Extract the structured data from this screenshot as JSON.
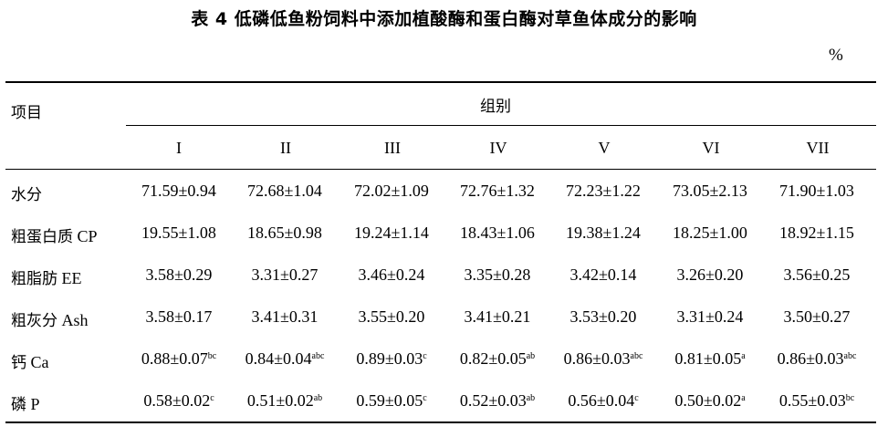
{
  "title": "表 4  低磷低鱼粉饲料中添加植酸酶和蛋白酶对草鱼体成分的影响",
  "unit": "%",
  "header": {
    "item": "项目",
    "group": "组别",
    "columns": [
      "I",
      "II",
      "III",
      "IV",
      "V",
      "VI",
      "VII"
    ]
  },
  "rows": [
    {
      "label_zh": "水分",
      "label_en": "",
      "cells": [
        {
          "v": "71.59±0.94",
          "sup": ""
        },
        {
          "v": "72.68±1.04",
          "sup": ""
        },
        {
          "v": "72.02±1.09",
          "sup": ""
        },
        {
          "v": "72.76±1.32",
          "sup": ""
        },
        {
          "v": "72.23±1.22",
          "sup": ""
        },
        {
          "v": "73.05±2.13",
          "sup": ""
        },
        {
          "v": "71.90±1.03",
          "sup": ""
        }
      ]
    },
    {
      "label_zh": "粗蛋白质",
      "label_en": "CP",
      "cells": [
        {
          "v": "19.55±1.08",
          "sup": ""
        },
        {
          "v": "18.65±0.98",
          "sup": ""
        },
        {
          "v": "19.24±1.14",
          "sup": ""
        },
        {
          "v": "18.43±1.06",
          "sup": ""
        },
        {
          "v": "19.38±1.24",
          "sup": ""
        },
        {
          "v": "18.25±1.00",
          "sup": ""
        },
        {
          "v": "18.92±1.15",
          "sup": ""
        }
      ]
    },
    {
      "label_zh": "粗脂肪",
      "label_en": "EE",
      "cells": [
        {
          "v": "3.58±0.29",
          "sup": ""
        },
        {
          "v": "3.31±0.27",
          "sup": ""
        },
        {
          "v": "3.46±0.24",
          "sup": ""
        },
        {
          "v": "3.35±0.28",
          "sup": ""
        },
        {
          "v": "3.42±0.14",
          "sup": ""
        },
        {
          "v": "3.26±0.20",
          "sup": ""
        },
        {
          "v": "3.56±0.25",
          "sup": ""
        }
      ]
    },
    {
      "label_zh": "粗灰分",
      "label_en": "Ash",
      "cells": [
        {
          "v": "3.58±0.17",
          "sup": ""
        },
        {
          "v": "3.41±0.31",
          "sup": ""
        },
        {
          "v": "3.55±0.20",
          "sup": ""
        },
        {
          "v": "3.41±0.21",
          "sup": ""
        },
        {
          "v": "3.53±0.20",
          "sup": ""
        },
        {
          "v": "3.31±0.24",
          "sup": ""
        },
        {
          "v": "3.50±0.27",
          "sup": ""
        }
      ]
    },
    {
      "label_zh": "钙",
      "label_en": "Ca",
      "cells": [
        {
          "v": "0.88±0.07",
          "sup": "bc"
        },
        {
          "v": "0.84±0.04",
          "sup": "abc"
        },
        {
          "v": "0.89±0.03",
          "sup": "c"
        },
        {
          "v": "0.82±0.05",
          "sup": "ab"
        },
        {
          "v": "0.86±0.03",
          "sup": "abc"
        },
        {
          "v": "0.81±0.05",
          "sup": "a"
        },
        {
          "v": "0.86±0.03",
          "sup": "abc"
        }
      ]
    },
    {
      "label_zh": "磷",
      "label_en": "P",
      "cells": [
        {
          "v": "0.58±0.02",
          "sup": "c"
        },
        {
          "v": "0.51±0.02",
          "sup": "ab"
        },
        {
          "v": "0.59±0.05",
          "sup": "c"
        },
        {
          "v": "0.52±0.03",
          "sup": "ab"
        },
        {
          "v": "0.56±0.04",
          "sup": "c"
        },
        {
          "v": "0.50±0.02",
          "sup": "a"
        },
        {
          "v": "0.55±0.03",
          "sup": "bc"
        }
      ]
    }
  ]
}
